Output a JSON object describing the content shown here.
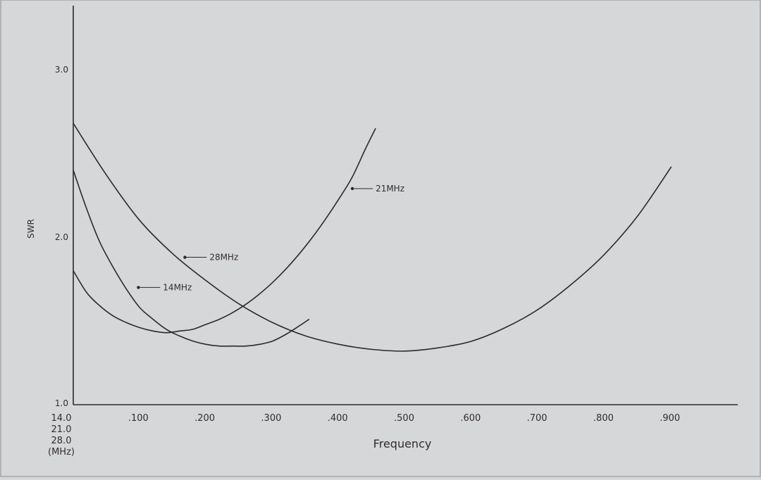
{
  "chart_data": {
    "type": "line",
    "title": "",
    "xlabel": "Frequency",
    "ylabel": "SWR",
    "grid": false,
    "legend": "none",
    "xlim": [
      0.0,
      1.0
    ],
    "ylim": [
      1.0,
      3.4
    ],
    "x_tick_labels": [
      {
        "value": 0.0,
        "lines": [
          "14.0",
          "21.0",
          "28.0",
          "(MHz)"
        ]
      },
      {
        "value": 0.1,
        "lines": [
          ".100"
        ]
      },
      {
        "value": 0.2,
        "lines": [
          ".200"
        ]
      },
      {
        "value": 0.3,
        "lines": [
          ".300"
        ]
      },
      {
        "value": 0.4,
        "lines": [
          ".400"
        ]
      },
      {
        "value": 0.5,
        "lines": [
          ".500"
        ]
      },
      {
        "value": 0.6,
        "lines": [
          ".600"
        ]
      },
      {
        "value": 0.7,
        "lines": [
          ".700"
        ]
      },
      {
        "value": 0.8,
        "lines": [
          ".800"
        ]
      },
      {
        "value": 0.9,
        "lines": [
          ".900"
        ]
      }
    ],
    "y_tick_labels": [
      {
        "value": 1.0,
        "label": "1.0"
      },
      {
        "value": 2.0,
        "label": "2.0"
      },
      {
        "value": 3.0,
        "label": "3.0"
      }
    ],
    "series": [
      {
        "name": "14MHz",
        "x": [
          0.0,
          0.02,
          0.04,
          0.06,
          0.08,
          0.1,
          0.12,
          0.14,
          0.16,
          0.18,
          0.2,
          0.22,
          0.24,
          0.26,
          0.28,
          0.3,
          0.32,
          0.34,
          0.355
        ],
        "y": [
          2.4,
          2.17,
          1.97,
          1.82,
          1.69,
          1.58,
          1.51,
          1.45,
          1.41,
          1.38,
          1.36,
          1.35,
          1.35,
          1.35,
          1.36,
          1.38,
          1.42,
          1.47,
          1.51
        ],
        "label_anchor": {
          "x": 0.098,
          "y": 1.7,
          "label_x": 0.135
        }
      },
      {
        "name": "21MHz",
        "x": [
          0.0,
          0.02,
          0.04,
          0.06,
          0.08,
          0.1,
          0.12,
          0.14,
          0.16,
          0.18,
          0.2,
          0.22,
          0.24,
          0.26,
          0.28,
          0.3,
          0.32,
          0.34,
          0.36,
          0.38,
          0.4,
          0.42,
          0.44,
          0.455
        ],
        "y": [
          1.8,
          1.67,
          1.59,
          1.53,
          1.49,
          1.46,
          1.44,
          1.43,
          1.44,
          1.45,
          1.48,
          1.51,
          1.55,
          1.6,
          1.66,
          1.73,
          1.81,
          1.9,
          2.0,
          2.11,
          2.23,
          2.36,
          2.53,
          2.65
        ],
        "label_anchor": {
          "x": 0.42,
          "y": 2.29,
          "label_x": 0.455
        }
      },
      {
        "name": "28MHz",
        "x": [
          0.0,
          0.05,
          0.1,
          0.15,
          0.2,
          0.25,
          0.3,
          0.35,
          0.4,
          0.45,
          0.5,
          0.55,
          0.6,
          0.65,
          0.7,
          0.75,
          0.8,
          0.85,
          0.9
        ],
        "y": [
          2.68,
          2.37,
          2.1,
          1.9,
          1.74,
          1.6,
          1.49,
          1.41,
          1.36,
          1.33,
          1.32,
          1.34,
          1.38,
          1.46,
          1.57,
          1.72,
          1.9,
          2.13,
          2.42
        ],
        "label_anchor": {
          "x": 0.168,
          "y": 1.88,
          "label_x": 0.205
        }
      }
    ]
  }
}
